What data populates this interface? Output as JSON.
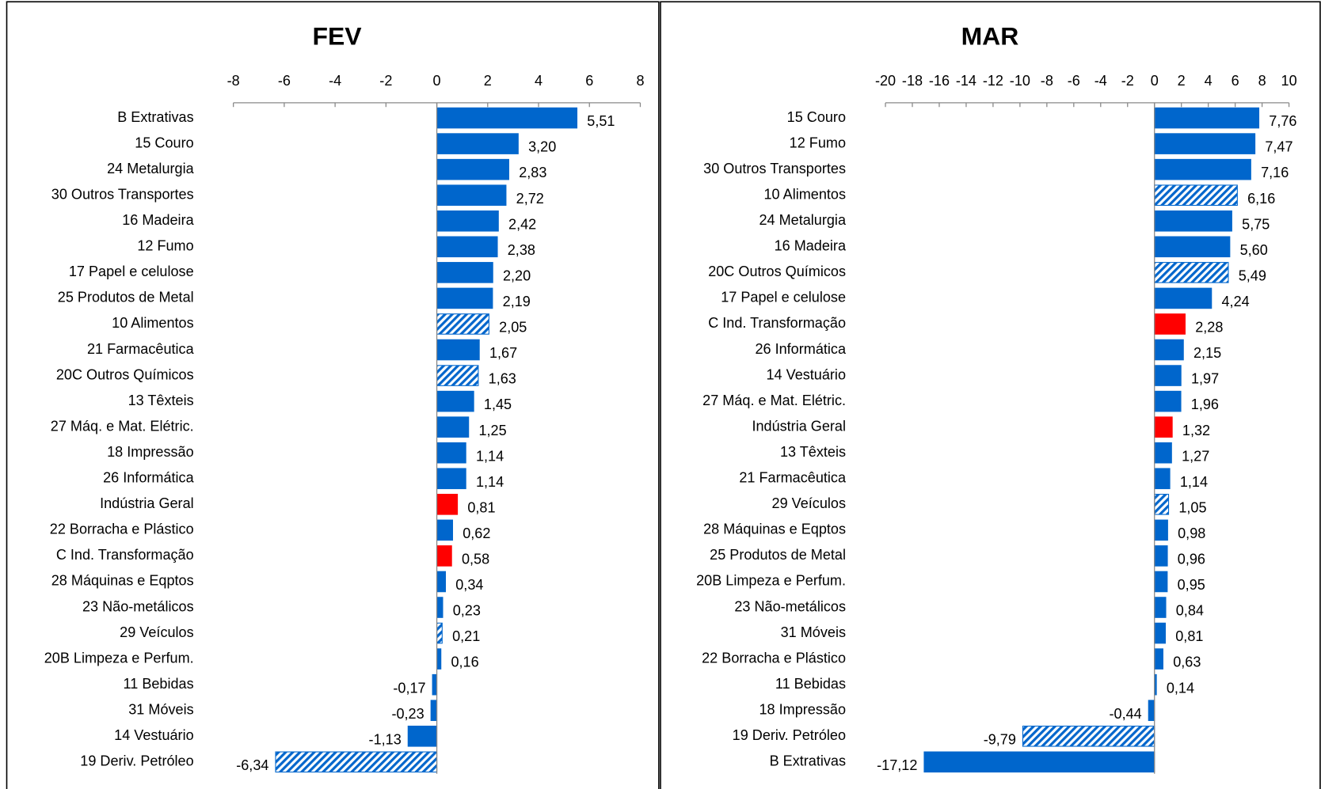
{
  "chart_data": [
    {
      "type": "bar",
      "orientation": "horizontal",
      "title": "FEV",
      "categories": [
        "B  Extrativas",
        "15  Couro",
        "24  Metalurgia",
        "30  Outros Transportes",
        "16  Madeira",
        "12  Fumo",
        "17  Papel e celulose",
        "25  Produtos de Metal",
        "10  Alimentos",
        "21  Farmacêutica",
        "20C  Outros Químicos",
        "13  Têxteis",
        "27  Máq. e Mat. Elétric.",
        "18  Impressão",
        "26  Informática",
        "Indústria Geral",
        "22  Borracha e Plástico",
        "C  Ind. Transformação",
        "28  Máquinas e Eqptos",
        "23  Não-metálicos",
        "29  Veículos",
        "20B  Limpeza e Perfum.",
        "11  Bebidas",
        "31  Móveis",
        "14  Vestuário",
        "19  Deriv. Petróleo"
      ],
      "values": [
        5.51,
        3.2,
        2.83,
        2.72,
        2.42,
        2.38,
        2.2,
        2.19,
        2.05,
        1.67,
        1.63,
        1.45,
        1.25,
        1.14,
        1.14,
        0.81,
        0.62,
        0.58,
        0.34,
        0.23,
        0.21,
        0.16,
        -0.17,
        -0.23,
        -1.13,
        -6.34
      ],
      "value_labels": [
        "5,51",
        "3,20",
        "2,83",
        "2,72",
        "2,42",
        "2,38",
        "2,20",
        "2,19",
        "2,05",
        "1,67",
        "1,63",
        "1,45",
        "1,25",
        "1,14",
        "1,14",
        "0,81",
        "0,62",
        "0,58",
        "0,34",
        "0,23",
        "0,21",
        "0,16",
        "-0,17",
        "-0,23",
        "-1,13",
        "-6,34"
      ],
      "colors": [
        "#0066cc",
        "#0066cc",
        "#0066cc",
        "#0066cc",
        "#0066cc",
        "#0066cc",
        "#0066cc",
        "#0066cc",
        "#0066cc",
        "#0066cc",
        "#0066cc",
        "#0066cc",
        "#0066cc",
        "#0066cc",
        "#0066cc",
        "#ff0000",
        "#0066cc",
        "#ff0000",
        "#0066cc",
        "#0066cc",
        "#0066cc",
        "#0066cc",
        "#0066cc",
        "#0066cc",
        "#0066cc",
        "#0066cc"
      ],
      "hatched": [
        false,
        false,
        false,
        false,
        false,
        false,
        false,
        false,
        true,
        false,
        true,
        false,
        false,
        false,
        false,
        false,
        false,
        false,
        false,
        false,
        true,
        false,
        false,
        false,
        false,
        true
      ],
      "xlim": [
        -8,
        8
      ],
      "xticks": [
        -8,
        -6,
        -4,
        -2,
        0,
        2,
        4,
        6,
        8
      ]
    },
    {
      "type": "bar",
      "orientation": "horizontal",
      "title": "MAR",
      "categories": [
        "15  Couro",
        "12  Fumo",
        "30  Outros Transportes",
        "10  Alimentos",
        "24  Metalurgia",
        "16  Madeira",
        "20C  Outros Químicos",
        "17  Papel e celulose",
        "C  Ind. Transformação",
        "26  Informática",
        "14  Vestuário",
        "27  Máq. e Mat. Elétric.",
        "Indústria Geral",
        "13  Têxteis",
        "21  Farmacêutica",
        "29  Veículos",
        "28  Máquinas e Eqptos",
        "25  Produtos de Metal",
        "20B  Limpeza e Perfum.",
        "23  Não-metálicos",
        "31  Móveis",
        "22  Borracha e Plástico",
        "11  Bebidas",
        "18  Impressão",
        "19  Deriv. Petróleo",
        "B  Extrativas"
      ],
      "values": [
        7.76,
        7.47,
        7.16,
        6.16,
        5.75,
        5.6,
        5.49,
        4.24,
        2.28,
        2.15,
        1.97,
        1.96,
        1.32,
        1.27,
        1.14,
        1.05,
        0.98,
        0.96,
        0.95,
        0.84,
        0.81,
        0.63,
        0.14,
        -0.44,
        -9.79,
        -17.12
      ],
      "value_labels": [
        "7,76",
        "7,47",
        "7,16",
        "6,16",
        "5,75",
        "5,60",
        "5,49",
        "4,24",
        "2,28",
        "2,15",
        "1,97",
        "1,96",
        "1,32",
        "1,27",
        "1,14",
        "1,05",
        "0,98",
        "0,96",
        "0,95",
        "0,84",
        "0,81",
        "0,63",
        "0,14",
        "-0,44",
        "-9,79",
        "-17,12"
      ],
      "colors": [
        "#0066cc",
        "#0066cc",
        "#0066cc",
        "#0066cc",
        "#0066cc",
        "#0066cc",
        "#0066cc",
        "#0066cc",
        "#ff0000",
        "#0066cc",
        "#0066cc",
        "#0066cc",
        "#ff0000",
        "#0066cc",
        "#0066cc",
        "#0066cc",
        "#0066cc",
        "#0066cc",
        "#0066cc",
        "#0066cc",
        "#0066cc",
        "#0066cc",
        "#0066cc",
        "#0066cc",
        "#0066cc",
        "#0066cc"
      ],
      "hatched": [
        false,
        false,
        false,
        true,
        false,
        false,
        true,
        false,
        false,
        false,
        false,
        false,
        false,
        false,
        false,
        true,
        false,
        false,
        false,
        false,
        false,
        false,
        false,
        false,
        true,
        false
      ],
      "xlim": [
        -20,
        10
      ],
      "xticks": [
        -20,
        -18,
        -16,
        -14,
        -12,
        -10,
        -8,
        -6,
        -4,
        -2,
        0,
        2,
        4,
        6,
        8,
        10
      ]
    }
  ]
}
